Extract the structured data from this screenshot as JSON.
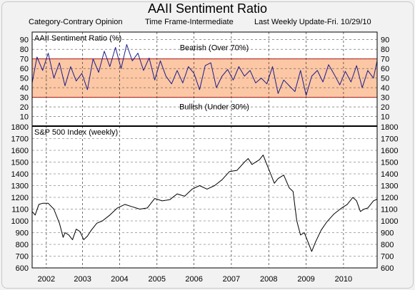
{
  "header": {
    "title": "AAII Sentiment Ratio",
    "subtitle_left": "Category-Contrary Opinion",
    "subtitle_mid": "Time Frame-Intermediate",
    "subtitle_right": "Last Weekly Update-Fri. 10/29/10"
  },
  "colors": {
    "sentiment_line": "#1c1c8c",
    "sp500_line": "#000000",
    "band_fill": "#fcc7a4",
    "threshold_line": "#cc0000",
    "plot_bg": "#ffffff",
    "page_bg": "#f2f2f2"
  },
  "chart_data": [
    {
      "type": "line",
      "title": "AAII Sentiment Ratio (%)",
      "ylim": [
        0,
        95
      ],
      "yticks": [
        10,
        20,
        30,
        40,
        50,
        60,
        70,
        80,
        90
      ],
      "xlim": [
        2001.72,
        2010.95
      ],
      "x_tick_labels": [
        "2002",
        "2003",
        "2004",
        "2005",
        "2006",
        "2007",
        "2008",
        "2009",
        "2010"
      ],
      "x_tick_values": [
        2002.1,
        2003.07,
        2004.06,
        2005.06,
        2006.05,
        2007.05,
        2008.05,
        2009.05,
        2010.05
      ],
      "bands": [
        {
          "from": 30,
          "to": 70
        }
      ],
      "annotations": [
        {
          "text": "Bearish (Over 70%)",
          "value": 70
        },
        {
          "text": "Bullish (Under 30%)",
          "value": 30
        }
      ],
      "series": [
        {
          "x": [
            2001.72,
            2001.85,
            2002.0,
            2002.15,
            2002.3,
            2002.45,
            2002.6,
            2002.75,
            2002.9,
            2003.05,
            2003.2,
            2003.35,
            2003.5,
            2003.65,
            2003.8,
            2003.95,
            2004.1,
            2004.25,
            2004.4,
            2004.55,
            2004.7,
            2004.85,
            2005.0,
            2005.15,
            2005.3,
            2005.45,
            2005.6,
            2005.75,
            2005.9,
            2006.05,
            2006.2,
            2006.35,
            2006.5,
            2006.65,
            2006.8,
            2006.95,
            2007.1,
            2007.25,
            2007.4,
            2007.55,
            2007.7,
            2007.85,
            2008.0,
            2008.15,
            2008.3,
            2008.45,
            2008.6,
            2008.75,
            2008.9,
            2009.05,
            2009.2,
            2009.35,
            2009.5,
            2009.65,
            2009.8,
            2009.95,
            2010.1,
            2010.25,
            2010.4,
            2010.55,
            2010.7,
            2010.85,
            2010.95
          ],
          "values": [
            45,
            72,
            58,
            76,
            50,
            66,
            42,
            62,
            47,
            55,
            38,
            70,
            56,
            78,
            62,
            82,
            60,
            85,
            68,
            76,
            58,
            71,
            48,
            68,
            52,
            44,
            58,
            45,
            62,
            55,
            38,
            63,
            66,
            40,
            52,
            59,
            48,
            62,
            52,
            58,
            45,
            50,
            44,
            62,
            34,
            48,
            42,
            36,
            58,
            32,
            52,
            58,
            46,
            64,
            54,
            43,
            57,
            46,
            63,
            40,
            58,
            50,
            68
          ]
        }
      ]
    },
    {
      "type": "line",
      "title": "S&P 500 Index (weekly)",
      "ylim": [
        600,
        1800
      ],
      "yticks": [
        600,
        700,
        800,
        900,
        1000,
        1100,
        1200,
        1300,
        1400,
        1500,
        1600,
        1700,
        1800
      ],
      "xlim": [
        2001.72,
        2010.95
      ],
      "x_tick_labels": [
        "2002",
        "2003",
        "2004",
        "2005",
        "2006",
        "2007",
        "2008",
        "2009",
        "2010"
      ],
      "x_tick_values": [
        2002.1,
        2003.07,
        2004.06,
        2005.06,
        2006.05,
        2007.05,
        2008.05,
        2009.05,
        2010.05
      ],
      "series": [
        {
          "x": [
            2001.72,
            2001.8,
            2001.9,
            2002.0,
            2002.15,
            2002.3,
            2002.45,
            2002.55,
            2002.6,
            2002.7,
            2002.8,
            2002.9,
            2003.0,
            2003.1,
            2003.2,
            2003.3,
            2003.45,
            2003.6,
            2003.8,
            2004.0,
            2004.2,
            2004.4,
            2004.6,
            2004.8,
            2005.0,
            2005.2,
            2005.4,
            2005.6,
            2005.8,
            2006.0,
            2006.2,
            2006.4,
            2006.6,
            2006.8,
            2007.0,
            2007.2,
            2007.4,
            2007.5,
            2007.6,
            2007.8,
            2007.9,
            2008.0,
            2008.1,
            2008.2,
            2008.3,
            2008.45,
            2008.6,
            2008.7,
            2008.8,
            2008.9,
            2009.0,
            2009.1,
            2009.2,
            2009.3,
            2009.45,
            2009.6,
            2009.8,
            2010.0,
            2010.15,
            2010.3,
            2010.4,
            2010.5,
            2010.6,
            2010.7,
            2010.85,
            2010.95
          ],
          "values": [
            1080,
            1050,
            1140,
            1150,
            1150,
            1100,
            980,
            860,
            900,
            880,
            840,
            930,
            910,
            840,
            870,
            920,
            980,
            1000,
            1050,
            1110,
            1140,
            1120,
            1100,
            1110,
            1190,
            1170,
            1180,
            1230,
            1210,
            1270,
            1300,
            1270,
            1300,
            1350,
            1420,
            1430,
            1500,
            1530,
            1480,
            1520,
            1560,
            1480,
            1400,
            1320,
            1360,
            1390,
            1280,
            1250,
            1000,
            880,
            900,
            820,
            740,
            820,
            920,
            990,
            1060,
            1110,
            1140,
            1200,
            1170,
            1080,
            1100,
            1110,
            1170,
            1185
          ]
        }
      ]
    }
  ]
}
